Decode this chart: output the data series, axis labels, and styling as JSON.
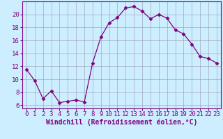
{
  "x": [
    0,
    1,
    2,
    3,
    4,
    5,
    6,
    7,
    8,
    9,
    10,
    11,
    12,
    13,
    14,
    15,
    16,
    17,
    18,
    19,
    20,
    21,
    22,
    23
  ],
  "y": [
    11.5,
    9.8,
    7.0,
    8.2,
    6.4,
    6.6,
    6.8,
    6.5,
    12.5,
    16.5,
    18.7,
    19.5,
    21.0,
    21.2,
    20.5,
    19.3,
    20.0,
    19.4,
    17.6,
    17.0,
    15.4,
    13.5,
    13.2,
    12.5
  ],
  "xlim": [
    -0.5,
    23.5
  ],
  "ylim": [
    5.5,
    22
  ],
  "yticks": [
    6,
    8,
    10,
    12,
    14,
    16,
    18,
    20
  ],
  "xticks": [
    0,
    1,
    2,
    3,
    4,
    5,
    6,
    7,
    8,
    9,
    10,
    11,
    12,
    13,
    14,
    15,
    16,
    17,
    18,
    19,
    20,
    21,
    22,
    23
  ],
  "xlabel": "Windchill (Refroidissement éolien,°C)",
  "line_color": "#800080",
  "marker": "D",
  "marker_size": 2.5,
  "bg_color": "#cceeff",
  "grid_color": "#9999aa",
  "xlabel_fontsize": 7,
  "tick_fontsize": 6.5
}
